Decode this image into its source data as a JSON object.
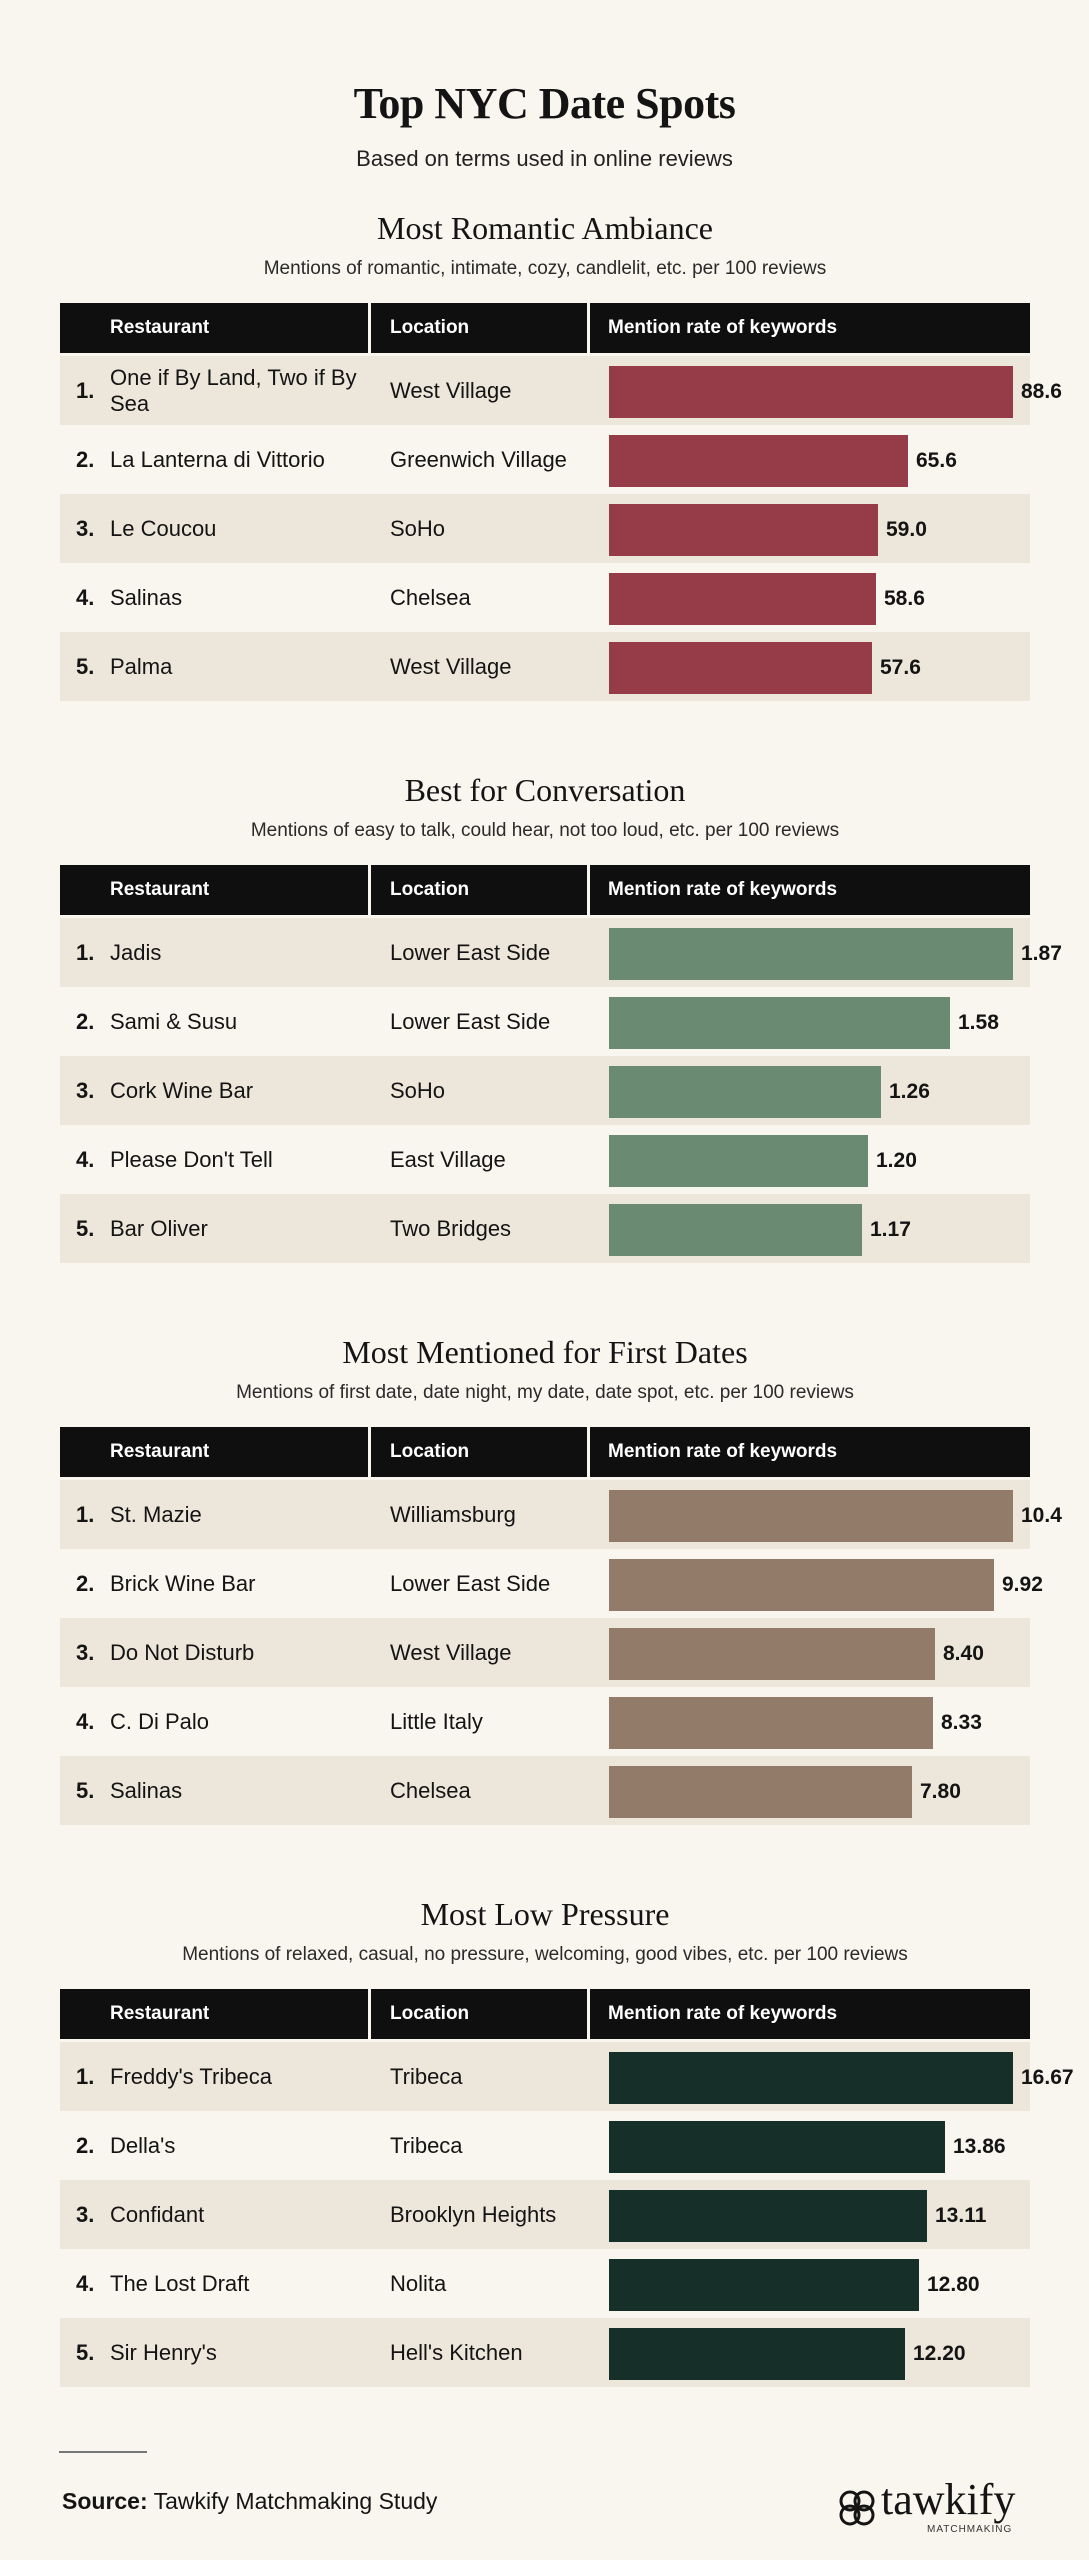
{
  "title": "Top NYC Date Spots",
  "subtitle": "Based on terms used in online reviews",
  "headers": {
    "restaurant": "Restaurant",
    "location": "Location",
    "metric": "Mention rate of keywords"
  },
  "source": {
    "label": "Source:",
    "text": "Tawkify Matchmaking Study"
  },
  "logo": {
    "word": "tawkify",
    "tagline": "MATCHMAKING"
  },
  "chart_data": [
    {
      "type": "bar",
      "title": "Most Romantic Ambiance",
      "subtitle": "Mentions of romantic, intimate, cozy, candlelit, etc. per 100 reviews",
      "color": "#963c48",
      "categories": [
        "One if By Land, Two if By Sea",
        "La Lanterna di Vittorio",
        "Le Coucou",
        "Salinas",
        "Palma"
      ],
      "locations": [
        "West Village",
        "Greenwich Village",
        "SoHo",
        "Chelsea",
        "West Village"
      ],
      "values": [
        88.6,
        65.6,
        59.0,
        58.6,
        57.6
      ],
      "labels": [
        "88.6",
        "65.6",
        "59.0",
        "58.6",
        "57.6"
      ]
    },
    {
      "type": "bar",
      "title": "Best for Conversation",
      "subtitle": "Mentions of easy to talk, could hear, not too loud, etc. per 100 reviews",
      "color": "#6b8a72",
      "categories": [
        "Jadis",
        "Sami & Susu",
        "Cork Wine Bar",
        "Please Don't Tell",
        "Bar Oliver"
      ],
      "locations": [
        "Lower East Side",
        "Lower East Side",
        "SoHo",
        "East Village",
        "Two Bridges"
      ],
      "values": [
        1.87,
        1.58,
        1.26,
        1.2,
        1.17
      ],
      "labels": [
        "1.87",
        "1.58",
        "1.26",
        "1.20",
        "1.17"
      ]
    },
    {
      "type": "bar",
      "title": "Most Mentioned for First Dates",
      "subtitle": "Mentions of first date, date night, my date, date spot, etc. per 100 reviews",
      "color": "#937b69",
      "categories": [
        "St. Mazie",
        "Brick Wine Bar",
        "Do Not Disturb",
        "C. Di Palo",
        "Salinas"
      ],
      "locations": [
        "Williamsburg",
        "Lower East Side",
        "West Village",
        "Little Italy",
        "Chelsea"
      ],
      "values": [
        10.4,
        9.92,
        8.4,
        8.33,
        7.8
      ],
      "labels": [
        "10.4",
        "9.92",
        "8.40",
        "8.33",
        "7.80"
      ]
    },
    {
      "type": "bar",
      "title": "Most Low Pressure",
      "subtitle": "Mentions of relaxed, casual, no pressure, welcoming, good vibes, etc. per 100 reviews",
      "color": "#163029",
      "categories": [
        "Freddy's Tribeca",
        "Della's",
        "Confidant",
        "The Lost Draft",
        "Sir Henry's"
      ],
      "locations": [
        "Tribeca",
        "Tribeca",
        "Brooklyn Heights",
        "Nolita",
        "Hell's Kitchen"
      ],
      "values": [
        16.67,
        13.86,
        13.11,
        12.8,
        12.2
      ],
      "labels": [
        "16.67",
        "13.86",
        "13.11",
        "12.80",
        "12.20"
      ]
    }
  ]
}
